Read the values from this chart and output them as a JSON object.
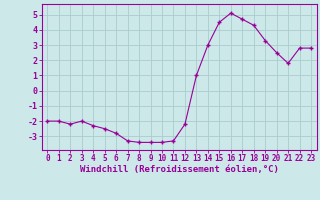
{
  "x": [
    0,
    1,
    2,
    3,
    4,
    5,
    6,
    7,
    8,
    9,
    10,
    11,
    12,
    13,
    14,
    15,
    16,
    17,
    18,
    19,
    20,
    21,
    22,
    23
  ],
  "y": [
    -2.0,
    -2.0,
    -2.2,
    -2.0,
    -2.3,
    -2.5,
    -2.8,
    -3.3,
    -3.4,
    -3.4,
    -3.4,
    -3.3,
    -2.2,
    1.0,
    3.0,
    4.5,
    5.1,
    4.7,
    4.3,
    3.3,
    2.5,
    1.8,
    2.8,
    2.8
  ],
  "line_color": "#990099",
  "marker": "+",
  "markersize": 3,
  "markeredgewidth": 1.0,
  "linewidth": 0.8,
  "background_color": "#cce8e8",
  "grid_color": "#aacccc",
  "xlabel": "Windchill (Refroidissement éolien,°C)",
  "xlabel_color": "#990099",
  "tick_color": "#990099",
  "spine_color": "#990099",
  "yticks": [
    -3,
    -2,
    -1,
    0,
    1,
    2,
    3,
    4,
    5
  ],
  "xlim": [
    -0.5,
    23.5
  ],
  "ylim": [
    -3.9,
    5.7
  ],
  "xtick_fontsize": 5.5,
  "ytick_fontsize": 6.0,
  "xlabel_fontsize": 6.5
}
